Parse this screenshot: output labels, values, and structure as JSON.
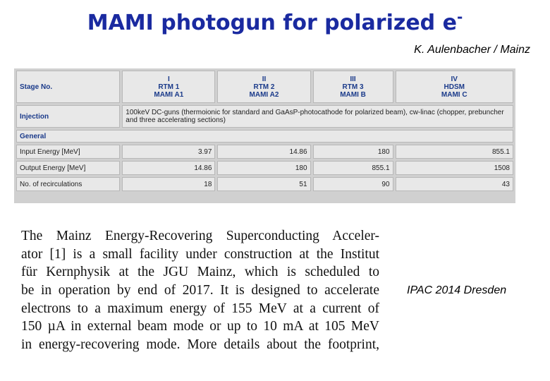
{
  "title": {
    "text": "MAMI photogun for polarized e",
    "superscript": "-"
  },
  "author": "K. Aulenbacher / Mainz",
  "table": {
    "header": [
      "Stage No.",
      [
        "I",
        "RTM 1",
        "MAMI A1"
      ],
      [
        "II",
        "RTM 2",
        "MAMI A2"
      ],
      [
        "III",
        "RTM 3",
        "MAMI B"
      ],
      [
        "IV",
        "HDSM",
        "MAMI C"
      ]
    ],
    "injection": {
      "label": "Injection",
      "text": "100keV DC-guns (thermoionic for standard and GaAsP-photocathode for polarized beam), cw-linac (chopper, prebuncher and three accelerating sections)"
    },
    "section": "General",
    "rows": [
      [
        "Input Energy [MeV]",
        "3.97",
        "14.86",
        "180",
        "855.1"
      ],
      [
        "Output Energy [MeV]",
        "14.86",
        "180",
        "855.1",
        "1508"
      ],
      [
        "No. of recirculations",
        "18",
        "51",
        "90",
        "43"
      ]
    ]
  },
  "paragraph": [
    "The Mainz Energy-Recovering Superconducting Acceler-",
    "ator [1] is a small facility under construction at the Institut",
    "für Kernphysik at the JGU Mainz, which is scheduled to",
    "be in operation by end of 2017. It is designed to accelerate",
    "electrons to a maximum energy of 155 MeV at a current of",
    "150 µA in external beam mode or up to 10 mA at 105 MeV",
    "in energy-recovering mode. More details about the footprint,"
  ],
  "footer": "IPAC 2014 Dresden"
}
